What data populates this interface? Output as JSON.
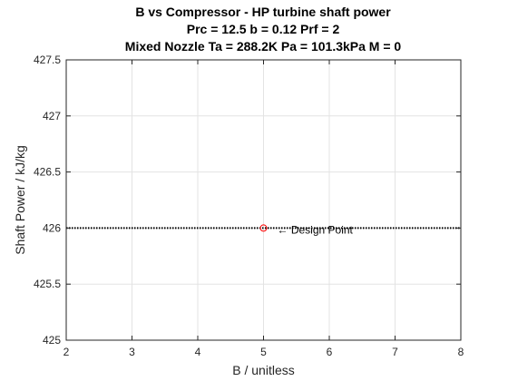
{
  "chart_data": {
    "type": "line",
    "title_lines": [
      "B vs Compressor - HP turbine shaft power",
      "Prc = 12.5 b = 0.12 Prf = 2",
      "Mixed Nozzle Ta = 288.2K Pa = 101.3kPa M = 0"
    ],
    "xlabel": "B / unitless",
    "ylabel": "Shaft Power / kJ/kg",
    "xlim": [
      2,
      8
    ],
    "ylim": [
      425,
      427.5
    ],
    "xticks": [
      2,
      3,
      4,
      5,
      6,
      7,
      8
    ],
    "yticks": [
      425,
      425.5,
      426,
      426.5,
      427,
      427.5
    ],
    "xtick_labels": [
      "2",
      "3",
      "4",
      "5",
      "6",
      "7",
      "8"
    ],
    "ytick_labels": [
      "425",
      "425.5",
      "426",
      "426.5",
      "427",
      "427.5"
    ],
    "grid": true,
    "series": [
      {
        "x": [
          2,
          2.5,
          3,
          3.5,
          4,
          4.5,
          5,
          5.5,
          6,
          6.5,
          7,
          7.5,
          8
        ],
        "y": [
          426,
          426,
          426,
          426,
          426,
          426,
          426,
          426,
          426,
          426,
          426,
          426,
          426
        ],
        "color": "#000000",
        "style": "dotted"
      }
    ],
    "design_point": {
      "x": 5,
      "y": 426,
      "marker": "circle",
      "color": "#ff0000",
      "label": "← Design Point"
    }
  }
}
